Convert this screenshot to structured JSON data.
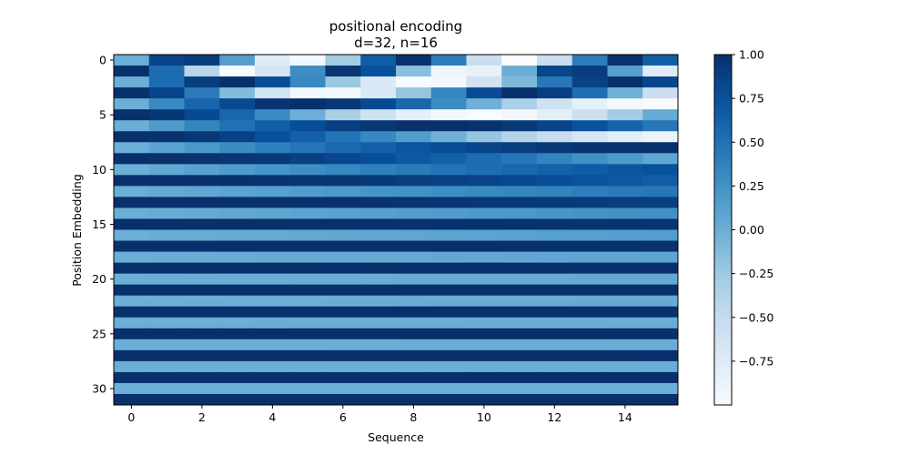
{
  "chart_data": {
    "type": "heatmap",
    "title": "positional encoding",
    "subtitle": "d=32, n=16",
    "xlabel": "Sequence",
    "ylabel": "Position Embedding",
    "x_ticks": [
      0,
      2,
      4,
      6,
      8,
      10,
      12,
      14
    ],
    "y_ticks": [
      0,
      5,
      10,
      15,
      20,
      25,
      30
    ],
    "n_positions": 16,
    "d_model": 32,
    "colormap": "Blues",
    "colormap_stops": [
      "#f7fbff",
      "#deebf7",
      "#c6dbef",
      "#9ecae1",
      "#6baed6",
      "#4292c6",
      "#2171b5",
      "#08519c",
      "#08306b"
    ],
    "value_range": [
      -1.0,
      1.0
    ],
    "colorbar_ticks": [
      {
        "value": 1.0,
        "label": "1.00"
      },
      {
        "value": 0.75,
        "label": "0.75"
      },
      {
        "value": 0.5,
        "label": "0.50"
      },
      {
        "value": 0.25,
        "label": "0.25"
      },
      {
        "value": 0.0,
        "label": "0.00"
      },
      {
        "value": -0.25,
        "label": "−0.25"
      },
      {
        "value": -0.5,
        "label": "−0.50"
      },
      {
        "value": -0.75,
        "label": "−0.75"
      }
    ],
    "grid": false,
    "colorbar_position": "right"
  }
}
